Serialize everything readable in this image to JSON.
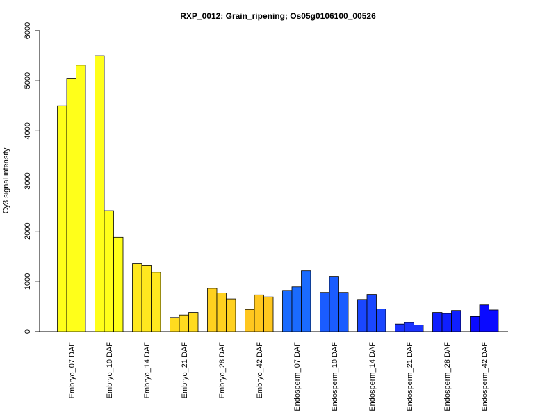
{
  "chart_data": {
    "type": "bar",
    "title": "RXP_0012: Grain_ripening; Os05g0106100_00526",
    "xlabel": "",
    "ylabel": "Cy3 signal intensity",
    "ylim": [
      0,
      6000
    ],
    "yticks": [
      0,
      1000,
      2000,
      3000,
      4000,
      5000,
      6000
    ],
    "replicates_per_group": 3,
    "groups": [
      {
        "label": "Embryo_07 DAF",
        "color": "#ffff1a",
        "values": [
          4500,
          5050,
          5310
        ]
      },
      {
        "label": "Embryo_10 DAF",
        "color": "#ffff1a",
        "values": [
          5500,
          2410,
          1880
        ]
      },
      {
        "label": "Embryo_14 DAF",
        "color": "#ffe81f",
        "values": [
          1350,
          1310,
          1180
        ]
      },
      {
        "label": "Embryo_21 DAF",
        "color": "#ffdb1f",
        "values": [
          280,
          330,
          380
        ]
      },
      {
        "label": "Embryo_28 DAF",
        "color": "#ffd11f",
        "values": [
          860,
          770,
          650
        ]
      },
      {
        "label": "Embryo_42 DAF",
        "color": "#ffc71f",
        "values": [
          440,
          730,
          690
        ]
      },
      {
        "label": "Endosperm_07 DAF",
        "color": "#1a6bff",
        "values": [
          820,
          890,
          1210
        ]
      },
      {
        "label": "Endosperm_10 DAF",
        "color": "#1a5cff",
        "values": [
          780,
          1100,
          780
        ]
      },
      {
        "label": "Endosperm_14 DAF",
        "color": "#1a47ff",
        "values": [
          640,
          740,
          450
        ]
      },
      {
        "label": "Endosperm_21 DAF",
        "color": "#1a33ff",
        "values": [
          150,
          180,
          130
        ]
      },
      {
        "label": "Endosperm_28 DAF",
        "color": "#0f1fff",
        "values": [
          380,
          360,
          420
        ]
      },
      {
        "label": "Endosperm_42 DAF",
        "color": "#0a0aff",
        "values": [
          300,
          530,
          430
        ]
      }
    ]
  }
}
